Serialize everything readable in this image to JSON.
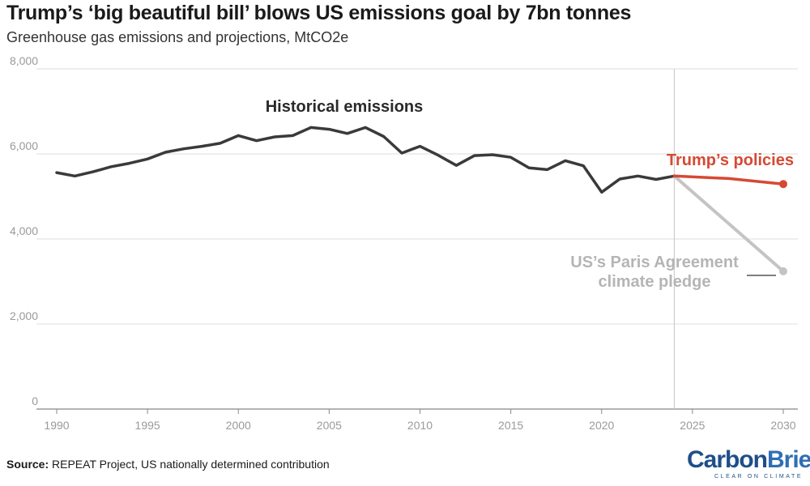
{
  "header": {
    "title": "Trump’s ‘big beautiful bill’ blows US emissions goal by 7bn tonnes",
    "subtitle": "Greenhouse gas emissions and projections, MtCO2e"
  },
  "footer": {
    "source_label": "Source:",
    "source_text": "REPEAT Project, US nationally determined contribution",
    "logo_part1": "Carbon",
    "logo_part2": "Brief",
    "logo_tagline": "CLEAR ON CLIMATE"
  },
  "chart_data": {
    "type": "line",
    "title": "Trump’s ‘big beautiful bill’ blows US emissions goal by 7bn tonnes",
    "subtitle": "Greenhouse gas emissions and projections, MtCO2e",
    "xlim": [
      1990,
      2030
    ],
    "ylim": [
      0,
      8000
    ],
    "x_ticks": [
      1990,
      1995,
      2000,
      2005,
      2010,
      2015,
      2020,
      2025,
      2030
    ],
    "y_ticks": [
      0,
      2000,
      4000,
      6000,
      8000
    ],
    "y_tick_labels": [
      "0",
      "2,000",
      "4,000",
      "6,000",
      "8,000"
    ],
    "grid": "horizontal",
    "reference_line_x": 2024,
    "series": [
      {
        "name": "Historical emissions",
        "color": "#3a3a3a",
        "x": [
          1990,
          1991,
          1992,
          1993,
          1994,
          1995,
          1996,
          1997,
          1998,
          1999,
          2000,
          2001,
          2002,
          2003,
          2004,
          2005,
          2006,
          2007,
          2008,
          2009,
          2010,
          2011,
          2012,
          2013,
          2014,
          2015,
          2016,
          2017,
          2018,
          2019,
          2020,
          2021,
          2022,
          2023,
          2024
        ],
        "y": [
          5560,
          5480,
          5580,
          5700,
          5780,
          5880,
          6040,
          6120,
          6180,
          6250,
          6430,
          6310,
          6400,
          6430,
          6620,
          6580,
          6480,
          6620,
          6410,
          6020,
          6180,
          5970,
          5730,
          5960,
          5980,
          5920,
          5670,
          5630,
          5840,
          5720,
          5100,
          5410,
          5480,
          5400,
          5480
        ]
      },
      {
        "name": "Trump’s policies",
        "color": "#d64933",
        "x": [
          2024,
          2027,
          2030
        ],
        "y": [
          5480,
          5420,
          5290
        ]
      },
      {
        "name": "US’s Paris Agreement climate pledge",
        "color": "#c4c4c4",
        "x": [
          2024,
          2030
        ],
        "y": [
          5480,
          3240
        ]
      }
    ]
  }
}
